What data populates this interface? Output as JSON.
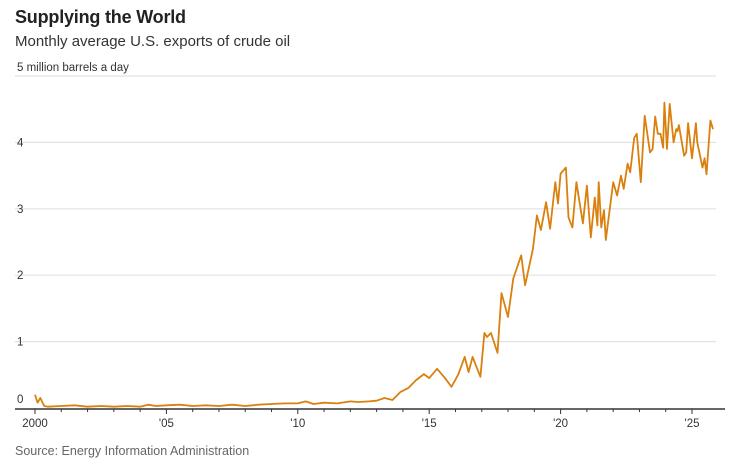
{
  "chart_data": {
    "type": "line",
    "title": "Supplying the World",
    "subtitle": "Monthly average U.S. exports of crude oil",
    "ylabel": "million barrels a day",
    "source": "Source: Energy Information Administration",
    "xlim": [
      2000,
      2025.9
    ],
    "ylim": [
      0,
      5
    ],
    "grid": true,
    "y_ticks": [
      {
        "value": 0,
        "label": "0"
      },
      {
        "value": 1,
        "label": "1"
      },
      {
        "value": 2,
        "label": "2"
      },
      {
        "value": 3,
        "label": "3"
      },
      {
        "value": 4,
        "label": "4"
      },
      {
        "value": 5,
        "label": "5 million barrels a day"
      }
    ],
    "x_ticks": [
      {
        "value": 2000,
        "label": "2000"
      },
      {
        "value": 2005,
        "label": "'05"
      },
      {
        "value": 2010,
        "label": "'10"
      },
      {
        "value": 2015,
        "label": "'15"
      },
      {
        "value": 2020,
        "label": "'20"
      },
      {
        "value": 2025,
        "label": "'25"
      }
    ],
    "colors": {
      "line": "#d9800f",
      "grid": "#e2e2e2",
      "axis": "#333333"
    },
    "series": [
      {
        "x": [
          2000.0,
          2000.1,
          2000.2,
          2000.35,
          2000.5,
          2001,
          2001.5,
          2002,
          2002.5,
          2003,
          2003.5,
          2004,
          2004.3,
          2004.6,
          2005,
          2005.5,
          2006,
          2006.5,
          2007,
          2007.5,
          2008,
          2008.5,
          2009,
          2009.5,
          2010,
          2010.3,
          2010.6,
          2011,
          2011.5,
          2012,
          2012.3,
          2012.7,
          2013.0,
          2013.3,
          2013.6,
          2013.9,
          2014.2,
          2014.5,
          2014.8,
          2015.0,
          2015.3,
          2015.6,
          2015.85,
          2016.1,
          2016.35,
          2016.5,
          2016.65,
          2016.95,
          2017.1,
          2017.2,
          2017.35,
          2017.6,
          2017.75,
          2018.0,
          2018.2,
          2018.5,
          2018.65,
          2018.95,
          2019.1,
          2019.25,
          2019.45,
          2019.6,
          2019.8,
          2019.9,
          2020.0,
          2020.2,
          2020.3,
          2020.45,
          2020.6,
          2020.85,
          2021.0,
          2021.15,
          2021.3,
          2021.4,
          2021.45,
          2021.55,
          2021.65,
          2021.72,
          2022.0,
          2022.15,
          2022.3,
          2022.4,
          2022.55,
          2022.65,
          2022.8,
          2022.9,
          2023.05,
          2023.2,
          2023.4,
          2023.5,
          2023.6,
          2023.7,
          2023.8,
          2023.9,
          2023.95,
          2024.05,
          2024.15,
          2024.3,
          2024.4,
          2024.45,
          2024.5,
          2024.7,
          2024.78,
          2024.85,
          2025.0,
          2025.15,
          2025.2,
          2025.4,
          2025.48,
          2025.55,
          2025.7,
          2025.8
        ],
        "values": [
          0.2,
          0.08,
          0.15,
          0.03,
          0.02,
          0.03,
          0.04,
          0.02,
          0.03,
          0.02,
          0.03,
          0.02,
          0.05,
          0.03,
          0.04,
          0.05,
          0.03,
          0.04,
          0.03,
          0.05,
          0.03,
          0.05,
          0.06,
          0.07,
          0.07,
          0.1,
          0.06,
          0.08,
          0.07,
          0.1,
          0.09,
          0.1,
          0.11,
          0.15,
          0.12,
          0.24,
          0.3,
          0.42,
          0.51,
          0.45,
          0.59,
          0.45,
          0.32,
          0.5,
          0.77,
          0.54,
          0.77,
          0.47,
          1.13,
          1.07,
          1.13,
          0.83,
          1.73,
          1.37,
          1.95,
          2.3,
          1.85,
          2.4,
          2.9,
          2.68,
          3.1,
          2.7,
          3.4,
          3.08,
          3.53,
          3.62,
          2.87,
          2.72,
          3.4,
          2.78,
          3.35,
          2.57,
          3.17,
          2.75,
          3.4,
          2.72,
          2.98,
          2.53,
          3.4,
          3.2,
          3.5,
          3.3,
          3.68,
          3.55,
          4.07,
          4.13,
          3.4,
          4.4,
          3.85,
          3.9,
          4.39,
          4.13,
          4.13,
          3.92,
          4.6,
          3.9,
          4.58,
          4.0,
          4.2,
          4.17,
          4.26,
          3.8,
          3.85,
          4.29,
          3.76,
          4.29,
          4.0,
          3.62,
          3.76,
          3.52,
          4.33,
          4.2
        ]
      }
    ]
  }
}
